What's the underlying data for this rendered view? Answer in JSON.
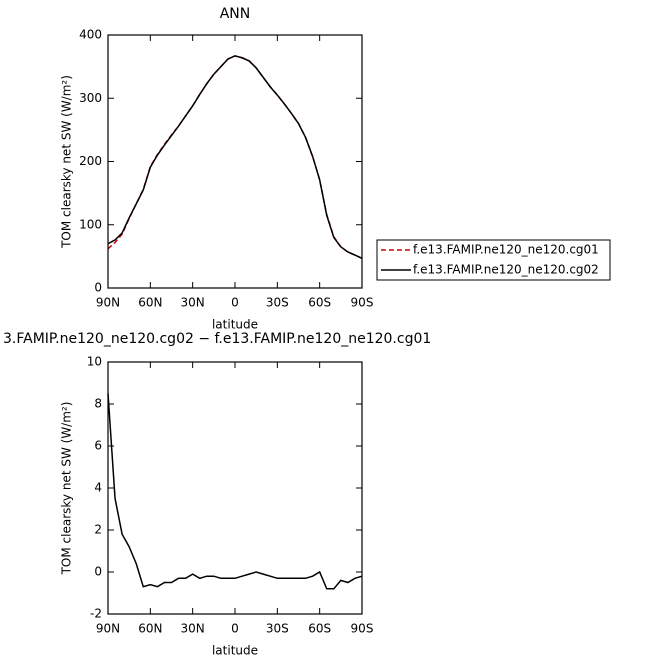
{
  "chart_data": [
    {
      "type": "line",
      "title": "ANN",
      "xlabel": "latitude",
      "ylabel": "TOM clearsky net SW (W/m²)",
      "x": [
        90,
        85,
        80,
        75,
        70,
        65,
        60,
        55,
        50,
        45,
        40,
        35,
        30,
        25,
        20,
        15,
        10,
        5,
        0,
        -5,
        -10,
        -15,
        -20,
        -25,
        -30,
        -35,
        -40,
        -45,
        -50,
        -55,
        -60,
        -65,
        -70,
        -75,
        -80,
        -85,
        -90
      ],
      "series": [
        {
          "name": "f.e13.FAMIP.ne120_ne120.cg01",
          "color": "#cc0000",
          "linestyle": "dashed",
          "values": [
            62,
            72,
            85,
            110,
            133,
            156,
            192,
            211,
            227,
            242,
            256,
            272,
            288,
            306,
            323,
            338,
            350,
            362,
            367,
            364,
            359,
            348,
            333,
            318,
            305,
            291,
            276,
            260,
            238,
            208,
            171,
            116,
            81,
            65,
            57,
            52,
            47
          ]
        },
        {
          "name": "f.e13.FAMIP.ne120_ne120.cg02",
          "color": "#000000",
          "linestyle": "solid",
          "values": [
            70,
            76,
            87,
            111,
            133,
            155,
            191,
            210,
            226,
            241,
            256,
            272,
            288,
            306,
            323,
            338,
            350,
            362,
            367,
            364,
            359,
            348,
            333,
            318,
            305,
            291,
            276,
            260,
            238,
            208,
            171,
            115,
            80,
            65,
            57,
            52,
            47
          ]
        }
      ],
      "xlim": [
        90,
        -90
      ],
      "xticks": [
        {
          "value": 90,
          "label": "90N"
        },
        {
          "value": 60,
          "label": "60N"
        },
        {
          "value": 30,
          "label": "30N"
        },
        0,
        {
          "value": -30,
          "label": "30S"
        },
        {
          "value": -60,
          "label": "60S"
        },
        {
          "value": -90,
          "label": "90S"
        }
      ],
      "ylim": [
        0,
        400
      ],
      "yticks": [
        0,
        100,
        200,
        300,
        400
      ],
      "legend": "right"
    },
    {
      "type": "line",
      "title": "3.FAMIP.ne120_ne120.cg02 − f.e13.FAMIP.ne120_ne120.cg01",
      "xlabel": "latitude",
      "ylabel": "TOM clearsky net SW (W/m²)",
      "x": [
        90,
        85,
        80,
        75,
        70,
        65,
        60,
        55,
        50,
        45,
        40,
        35,
        30,
        25,
        20,
        15,
        10,
        5,
        0,
        -5,
        -10,
        -15,
        -20,
        -25,
        -30,
        -35,
        -40,
        -45,
        -50,
        -55,
        -60,
        -65,
        -70,
        -75,
        -80,
        -85,
        -90
      ],
      "series": [
        {
          "color": "#000000",
          "linestyle": "solid",
          "values": [
            8.5,
            3.5,
            1.8,
            1.2,
            0.4,
            -0.7,
            -0.6,
            -0.7,
            -0.5,
            -0.5,
            -0.3,
            -0.3,
            -0.1,
            -0.3,
            -0.2,
            -0.2,
            -0.3,
            -0.3,
            -0.3,
            -0.2,
            -0.1,
            0.0,
            -0.1,
            -0.2,
            -0.3,
            -0.3,
            -0.3,
            -0.3,
            -0.3,
            -0.2,
            0.0,
            -0.8,
            -0.8,
            -0.4,
            -0.5,
            -0.3,
            -0.2
          ]
        }
      ],
      "xlim": [
        90,
        -90
      ],
      "xticks": [
        {
          "value": 90,
          "label": "90N"
        },
        {
          "value": 60,
          "label": "60N"
        },
        {
          "value": 30,
          "label": "30N"
        },
        0,
        {
          "value": -30,
          "label": "30S"
        },
        {
          "value": -60,
          "label": "60S"
        },
        {
          "value": -90,
          "label": "90S"
        }
      ],
      "ylim": [
        -2,
        10
      ],
      "yticks": [
        -2,
        0,
        2,
        4,
        6,
        8,
        10
      ]
    }
  ]
}
